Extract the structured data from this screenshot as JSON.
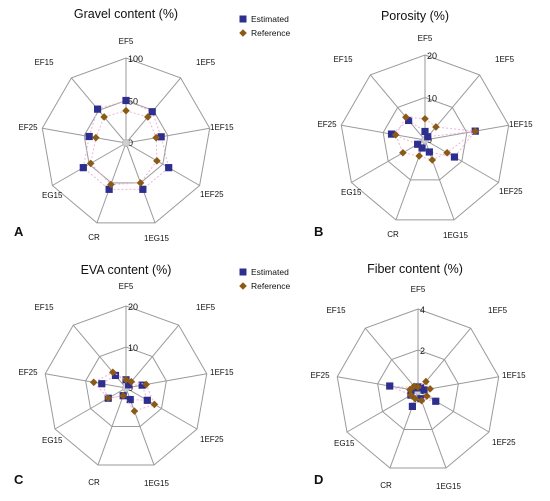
{
  "chart_data": [
    {
      "type": "radar",
      "panel_label": "A",
      "title": "Gravel content (%)",
      "axes": [
        "EF5",
        "1EF5",
        "1EF15",
        "1EF25",
        "1EG15",
        "CR",
        "EG15",
        "EF25",
        "EF15"
      ],
      "ticks": [
        0,
        50,
        100
      ],
      "rmax": 100,
      "legend": true,
      "series": [
        {
          "name": "Estimated",
          "color": "#2e2e8f",
          "marker": "square",
          "values": [
            50,
            48,
            42,
            58,
            58,
            58,
            58,
            44,
            52
          ]
        },
        {
          "name": "Reference",
          "color": "#8b5a14",
          "marker": "diamond",
          "values": [
            38,
            40,
            36,
            42,
            50,
            52,
            48,
            36,
            40
          ]
        }
      ]
    },
    {
      "type": "radar",
      "panel_label": "B",
      "title": "Porosity (%)",
      "axes": [
        "EF5",
        "1EF5",
        "1EF15",
        "1EF25",
        "1EG15",
        "CR",
        "EG15",
        "EF25",
        "EF15"
      ],
      "ticks": [
        0,
        10,
        20
      ],
      "rmax": 20,
      "legend": false,
      "series": [
        {
          "name": "Estimated",
          "color": "#2e2e8f",
          "marker": "square",
          "values": [
            2,
            1,
            12,
            8,
            3,
            2,
            2,
            8,
            6
          ]
        },
        {
          "name": "Reference",
          "color": "#8b5a14",
          "marker": "diamond",
          "values": [
            5,
            4,
            12,
            6,
            5,
            4,
            6,
            7,
            7
          ]
        }
      ]
    },
    {
      "type": "radar",
      "panel_label": "C",
      "title": "EVA content (%)",
      "axes": [
        "EF5",
        "1EF5",
        "1EF15",
        "1EF25",
        "1EG15",
        "CR",
        "EG15",
        "EF25",
        "EF15"
      ],
      "ticks": [
        0,
        10,
        20
      ],
      "rmax": 20,
      "legend": true,
      "series": [
        {
          "name": "Estimated",
          "color": "#2e2e8f",
          "marker": "square",
          "values": [
            2,
            1,
            4,
            6,
            3,
            2,
            5,
            6,
            4
          ]
        },
        {
          "name": "Reference",
          "color": "#8b5a14",
          "marker": "diamond",
          "values": [
            2,
            2,
            5,
            8,
            6,
            2,
            5,
            8,
            5
          ]
        }
      ]
    },
    {
      "type": "radar",
      "panel_label": "D",
      "title": "Fiber content (%)",
      "axes": [
        "EF5",
        "1EF5",
        "1EF15",
        "1EF25",
        "1EG15",
        "CR",
        "EG15",
        "EF25",
        "EF15"
      ],
      "ticks": [
        0,
        2,
        4
      ],
      "rmax": 4,
      "legend": false,
      "series": [
        {
          "name": "Estimated",
          "color": "#2e2e8f",
          "marker": "square",
          "values": [
            0.2,
            0.2,
            0.3,
            1.0,
            0.4,
            0.8,
            0.4,
            1.4,
            0.2
          ]
        },
        {
          "name": "Reference",
          "color": "#8b5a14",
          "marker": "diamond",
          "values": [
            0.2,
            0.6,
            0.6,
            0.5,
            0.5,
            0.4,
            0.4,
            0.4,
            0.3
          ]
        }
      ]
    }
  ]
}
